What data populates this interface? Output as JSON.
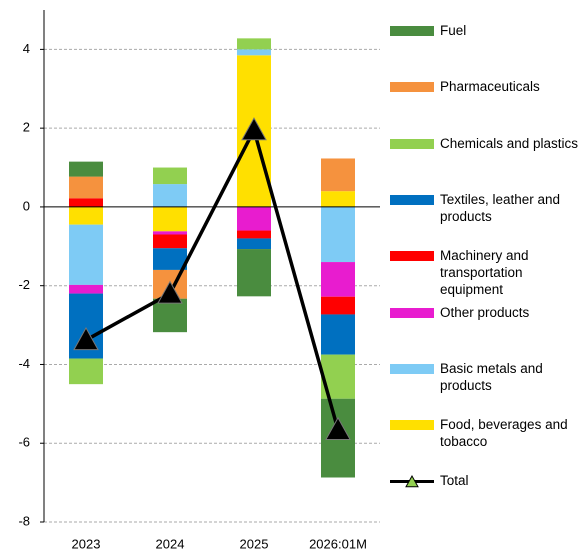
{
  "chart_data": {
    "type": "bar",
    "stacked": true,
    "categories": [
      "2023",
      "2024",
      "2025",
      "2026:01M"
    ],
    "ylim": [
      -8,
      5
    ],
    "yticks": [
      -8,
      -6,
      -4,
      -2,
      0,
      2,
      4
    ],
    "grid": true,
    "series": [
      {
        "name": "Fuel",
        "color": "#4a8c3f",
        "values": [
          0.38,
          -0.85,
          -1.2,
          -2.0
        ]
      },
      {
        "name": "Pharmaceuticals",
        "color": "#f5923e",
        "values": [
          0.55,
          -0.73,
          0,
          0.83
        ]
      },
      {
        "name": "Chemicals and plastics",
        "color": "#92d050",
        "values": [
          -0.65,
          0.42,
          0.28,
          -1.12
        ]
      },
      {
        "name": "Textiles, leather and products",
        "color": "#0070c0",
        "values": [
          -1.65,
          -0.55,
          -0.27,
          -1.02
        ]
      },
      {
        "name": "Machinery and transportation equipment",
        "color": "#ff0000",
        "values": [
          0.22,
          -0.35,
          -0.2,
          -0.45
        ]
      },
      {
        "name": "Other products",
        "color": "#e81ccf",
        "values": [
          -0.22,
          -0.08,
          -0.6,
          -0.88
        ]
      },
      {
        "name": "Basic metals and products",
        "color": "#7ecbf5",
        "values": [
          -1.53,
          0.58,
          0.15,
          -1.4
        ]
      },
      {
        "name": "Food, beverages and tobacco",
        "color": "#ffe000",
        "values": [
          -0.45,
          -0.62,
          3.85,
          0.4
        ]
      },
      {
        "name": "Total",
        "type": "line",
        "color": "#000000",
        "values": [
          -3.38,
          -2.2,
          1.95,
          -5.66
        ]
      }
    ]
  }
}
